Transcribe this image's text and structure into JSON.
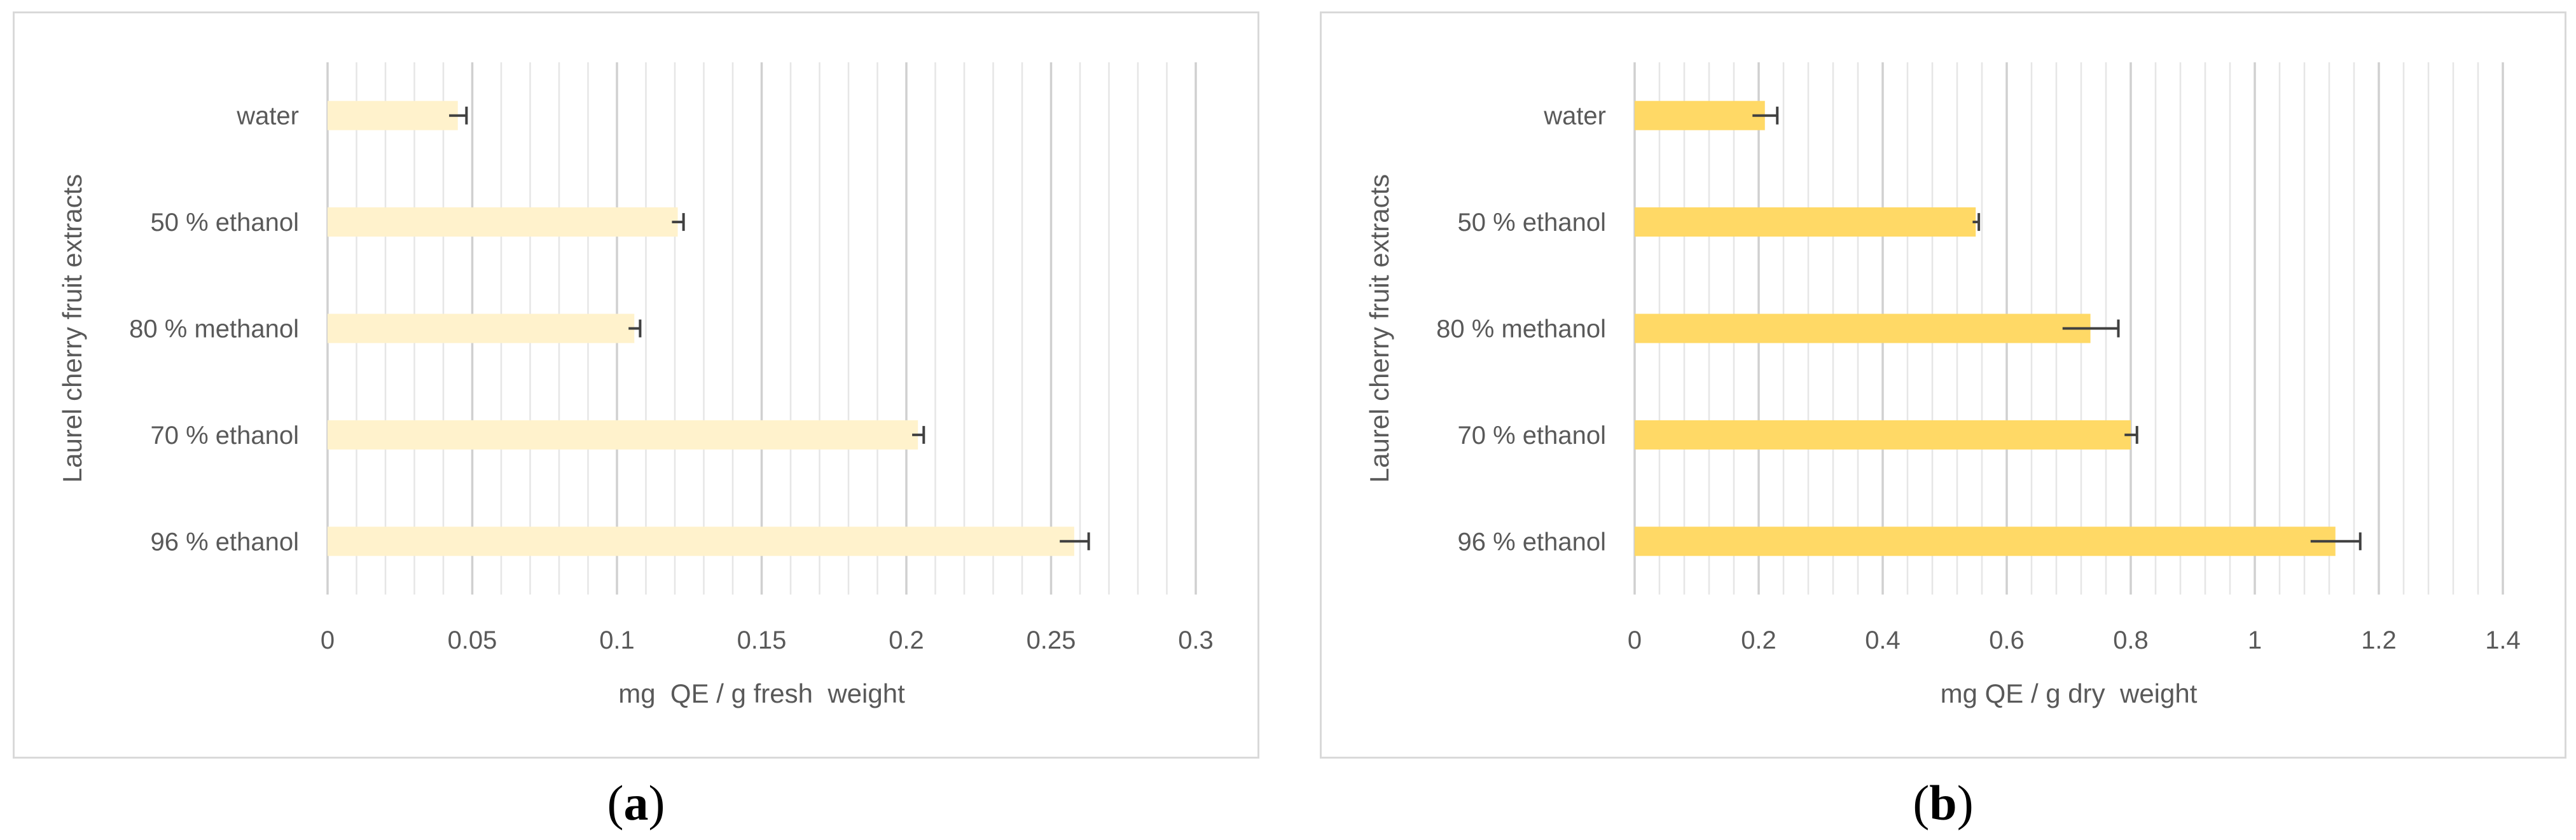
{
  "chart_data": [
    {
      "type": "bar",
      "orientation": "horizontal",
      "panel_label": "a",
      "categories": [
        "water",
        "50 % ethanol",
        "80 % methanol",
        "70 % ethanol",
        "96 % ethanol"
      ],
      "values": [
        0.045,
        0.121,
        0.106,
        0.204,
        0.258
      ],
      "errors": [
        0.003,
        0.002,
        0.002,
        0.002,
        0.005
      ],
      "xlabel": "mg  QE / g fresh  weight",
      "ylabel": "Laurel cherry fruit extracts",
      "xlim": [
        0,
        0.3
      ],
      "xticks": [
        0,
        0.05,
        0.1,
        0.15,
        0.2,
        0.25,
        0.3
      ],
      "xtick_labels": [
        "0",
        "0.05",
        "0.1",
        "0.15",
        "0.2",
        "0.25",
        "0.3"
      ],
      "minor_divisions": 5,
      "grid": true,
      "bar_color": "#fff2cc",
      "errorbar_color": "#404040",
      "major_grid_color": "#d0d0d0",
      "minor_grid_color": "#e6e6e6"
    },
    {
      "type": "bar",
      "orientation": "horizontal",
      "panel_label": "b",
      "categories": [
        "water",
        "50 % ethanol",
        "80 % methanol",
        "70 % ethanol",
        "96 % ethanol"
      ],
      "values": [
        0.21,
        0.55,
        0.735,
        0.8,
        1.13
      ],
      "errors": [
        0.02,
        0.005,
        0.045,
        0.01,
        0.04
      ],
      "xlabel": "mg QE / g dry  weight",
      "ylabel": "Laurel cherry fruit extracts",
      "xlim": [
        0,
        1.4
      ],
      "xticks": [
        0,
        0.2,
        0.4,
        0.6,
        0.8,
        1.0,
        1.2,
        1.4
      ],
      "xtick_labels": [
        "0",
        "0.2",
        "0.4",
        "0.6",
        "0.8",
        "1",
        "1.2",
        "1.4"
      ],
      "minor_divisions": 5,
      "grid": true,
      "bar_color": "#ffd966",
      "errorbar_color": "#404040",
      "major_grid_color": "#d0d0d0",
      "minor_grid_color": "#e6e6e6"
    }
  ]
}
